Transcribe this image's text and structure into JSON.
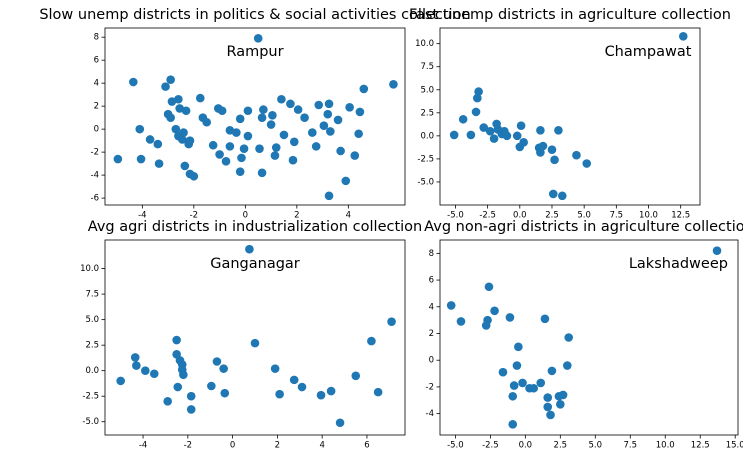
{
  "chart_data": [
    {
      "type": "scatter",
      "title": "Slow unemp districts in politics & social activities collection",
      "annotation": "Rampur",
      "color": "#1f77b4",
      "x": [
        -4.95,
        -4.35,
        -4.1,
        -4.05,
        -3.7,
        -3.4,
        -3.35,
        -3.1,
        -2.9,
        -3.0,
        -2.9,
        -2.85,
        -2.6,
        -2.55,
        -2.7,
        -2.6,
        -2.45,
        -2.3,
        -2.4,
        -2.2,
        -2.15,
        -2.35,
        -2.15,
        -2.0,
        -1.75,
        -1.65,
        -1.5,
        -1.25,
        -1.05,
        -1.0,
        -0.9,
        -0.75,
        -0.6,
        -0.6,
        -0.35,
        -0.2,
        -0.15,
        -0.2,
        -0.05,
        0.1,
        0.1,
        0.5,
        0.55,
        0.65,
        0.7,
        0.65,
        1.0,
        1.05,
        1.15,
        1.2,
        1.4,
        1.5,
        1.75,
        1.85,
        1.9,
        2.05,
        2.3,
        2.6,
        2.75,
        2.85,
        3.05,
        3.2,
        3.25,
        3.3,
        3.25,
        3.6,
        3.7,
        3.9,
        4.05,
        4.25,
        4.4,
        4.45,
        4.6,
        5.75
      ],
      "y": [
        -2.6,
        4.1,
        0,
        -2.6,
        -0.9,
        -1.3,
        -3.0,
        3.7,
        4.3,
        1.3,
        1.0,
        2.4,
        2.6,
        1.8,
        0,
        -0.6,
        -0.9,
        1.6,
        -0.3,
        -1.3,
        -1.0,
        -3.2,
        -3.9,
        -4.1,
        2.7,
        1.0,
        0.6,
        -1.4,
        1.8,
        -2.2,
        1.6,
        -2.8,
        -0.1,
        -1.5,
        -0.3,
        0.9,
        -2.5,
        -3.7,
        -1.7,
        -0.6,
        1.6,
        7.9,
        -1.7,
        1.0,
        1.7,
        -3.8,
        0.4,
        1.2,
        -2.3,
        -1.6,
        2.6,
        -0.5,
        2.2,
        -2.7,
        -1.1,
        1.7,
        1.0,
        -0.3,
        -1.5,
        2.1,
        0.3,
        1.3,
        2.2,
        -0.2,
        -5.8,
        0.8,
        -1.9,
        -4.5,
        1.9,
        -2.3,
        -0.4,
        1.5,
        3.5,
        3.9
      ],
      "xlim": [
        -5.45,
        6.2
      ],
      "ylim": [
        -6.6,
        8.8
      ],
      "xticks": [
        -4,
        -2,
        0,
        2,
        4
      ],
      "yticks": [
        -6,
        -4,
        -2,
        0,
        2,
        4,
        6,
        8
      ]
    },
    {
      "type": "scatter",
      "title": "Fast unemp districts in agriculture collection",
      "annotation": "Champawat",
      "color": "#1f77b4",
      "x": [
        -5.1,
        -4.4,
        -3.8,
        -3.4,
        -3.3,
        -3.2,
        -2.8,
        -2.3,
        -2.0,
        -1.8,
        -1.7,
        -1.4,
        -1.2,
        -1.0,
        -0.2,
        0.0,
        0.3,
        0.1,
        1.6,
        1.5,
        1.6,
        1.8,
        2.5,
        2.7,
        3.0,
        2.6,
        3.3,
        4.4,
        5.2,
        12.7
      ],
      "y": [
        0.1,
        1.8,
        0.1,
        2.6,
        4.1,
        4.8,
        0.9,
        0.5,
        -0.3,
        1.3,
        0.7,
        0.2,
        0.5,
        0.0,
        0.0,
        -1.2,
        -0.7,
        1.1,
        0.6,
        -1.3,
        -1.8,
        -1.1,
        -1.5,
        -2.6,
        0.6,
        -6.3,
        -6.5,
        -2.1,
        -3.0,
        10.8
      ],
      "xlim": [
        -6.2,
        14.0
      ],
      "ylim": [
        -7.5,
        11.7
      ],
      "xticks": [
        {
          "value": -5,
          "label": "-5.0"
        },
        -2.5,
        {
          "value": 0,
          "label": "0.0"
        },
        2.5,
        {
          "value": 5,
          "label": "5.0"
        },
        7.5,
        {
          "value": 10,
          "label": "10.0"
        },
        12.5
      ],
      "yticks": [
        {
          "value": -5,
          "label": "-5.0"
        },
        -2.5,
        {
          "value": 0,
          "label": "0.0"
        },
        2.5,
        {
          "value": 5,
          "label": "5.0"
        },
        7.5,
        {
          "value": 10,
          "label": "10.0"
        }
      ]
    },
    {
      "type": "scatter",
      "title": "Avg agri districts in industrialization collection",
      "annotation": "Ganganagar",
      "color": "#1f77b4",
      "x": [
        -5.0,
        -4.35,
        -4.3,
        -3.9,
        -3.5,
        -2.9,
        -2.5,
        -2.5,
        -2.35,
        -2.25,
        -2.45,
        -2.25,
        -2.2,
        -1.85,
        -1.85,
        -0.95,
        -0.7,
        -0.4,
        -0.35,
        0.75,
        1.0,
        1.9,
        2.1,
        2.75,
        3.1,
        3.95,
        4.4,
        4.8,
        5.5,
        6.2,
        6.5,
        7.1
      ],
      "y": [
        -1.0,
        1.3,
        0.5,
        0,
        -0.3,
        -3.0,
        3.0,
        1.6,
        1.0,
        0.6,
        -1.6,
        0.1,
        -0.4,
        -2.5,
        -3.8,
        -1.5,
        0.9,
        0.2,
        -2.2,
        11.9,
        2.7,
        0.2,
        -2.3,
        -0.9,
        -1.6,
        -2.4,
        -2.0,
        -5.1,
        -0.5,
        2.9,
        -2.1,
        4.8
      ],
      "xlim": [
        -5.7,
        7.7
      ],
      "ylim": [
        -6.3,
        12.8
      ],
      "xticks": [
        -4,
        -2,
        0,
        2,
        4,
        6
      ],
      "yticks": [
        {
          "value": -5,
          "label": "-5.0"
        },
        -2.5,
        {
          "value": 0,
          "label": "0.0"
        },
        2.5,
        {
          "value": 5,
          "label": "5.0"
        },
        7.5,
        {
          "value": 10,
          "label": "10.0"
        }
      ]
    },
    {
      "type": "scatter",
      "title": "Avg non-agri districts in agriculture collection",
      "annotation": "Lakshadweep",
      "color": "#1f77b4",
      "x": [
        -5.3,
        -4.6,
        -2.6,
        -2.7,
        -2.8,
        -2.2,
        -1.6,
        -1.1,
        -0.9,
        -0.9,
        -0.5,
        -0.6,
        -0.8,
        -0.2,
        0.3,
        0.6,
        1.1,
        1.4,
        1.9,
        1.6,
        1.6,
        1.8,
        2.5,
        2.7,
        2.4,
        3.0,
        3.1,
        13.7
      ],
      "y": [
        4.1,
        2.9,
        5.5,
        3.0,
        2.6,
        3.7,
        -0.9,
        3.2,
        -2.7,
        -4.8,
        1.0,
        -0.4,
        -1.9,
        -1.7,
        -2.1,
        -2.1,
        -1.7,
        3.1,
        -0.8,
        -2.8,
        -3.5,
        -4.1,
        -3.3,
        -2.6,
        -2.7,
        -0.4,
        1.7,
        8.2
      ],
      "xlim": [
        -6.1,
        15.2
      ],
      "ylim": [
        -5.6,
        9.0
      ],
      "xticks": [
        {
          "value": -5,
          "label": "-5.0"
        },
        -2.5,
        {
          "value": 0,
          "label": "0.0"
        },
        2.5,
        {
          "value": 5,
          "label": "5.0"
        },
        7.5,
        {
          "value": 10,
          "label": "10.0"
        },
        12.5,
        {
          "value": 15,
          "label": "15.0"
        }
      ],
      "yticks": [
        -4,
        -2,
        0,
        2,
        4,
        6,
        8
      ]
    }
  ]
}
